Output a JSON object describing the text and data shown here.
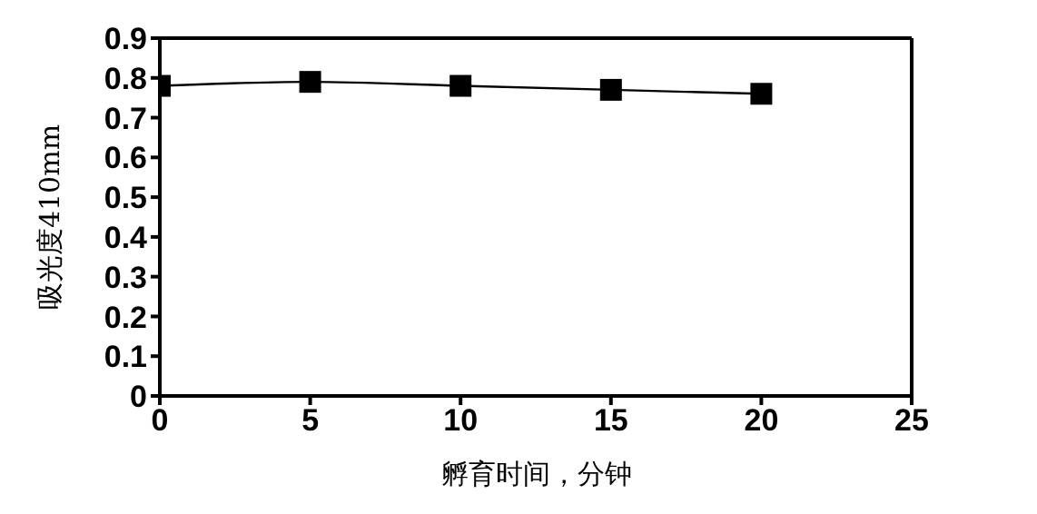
{
  "chart_data": {
    "type": "line",
    "xlabel": "孵育时间，分钟",
    "ylabel": "吸光度410mm",
    "x": [
      0,
      5,
      10,
      15,
      20
    ],
    "series": [
      {
        "color": "#000000",
        "values": [
          0.78,
          0.79,
          0.78,
          0.77,
          0.76
        ]
      }
    ],
    "xlim": [
      0,
      25
    ],
    "xticks": [
      0,
      5,
      10,
      15,
      20,
      25
    ],
    "ylim": [
      0,
      0.9
    ],
    "yticks": [
      0,
      0.1,
      0.2,
      0.3,
      0.4,
      0.5,
      0.6,
      0.7,
      0.8,
      0.9
    ],
    "marker": "square",
    "line_style": "solid",
    "grid": false,
    "legend": false
  }
}
